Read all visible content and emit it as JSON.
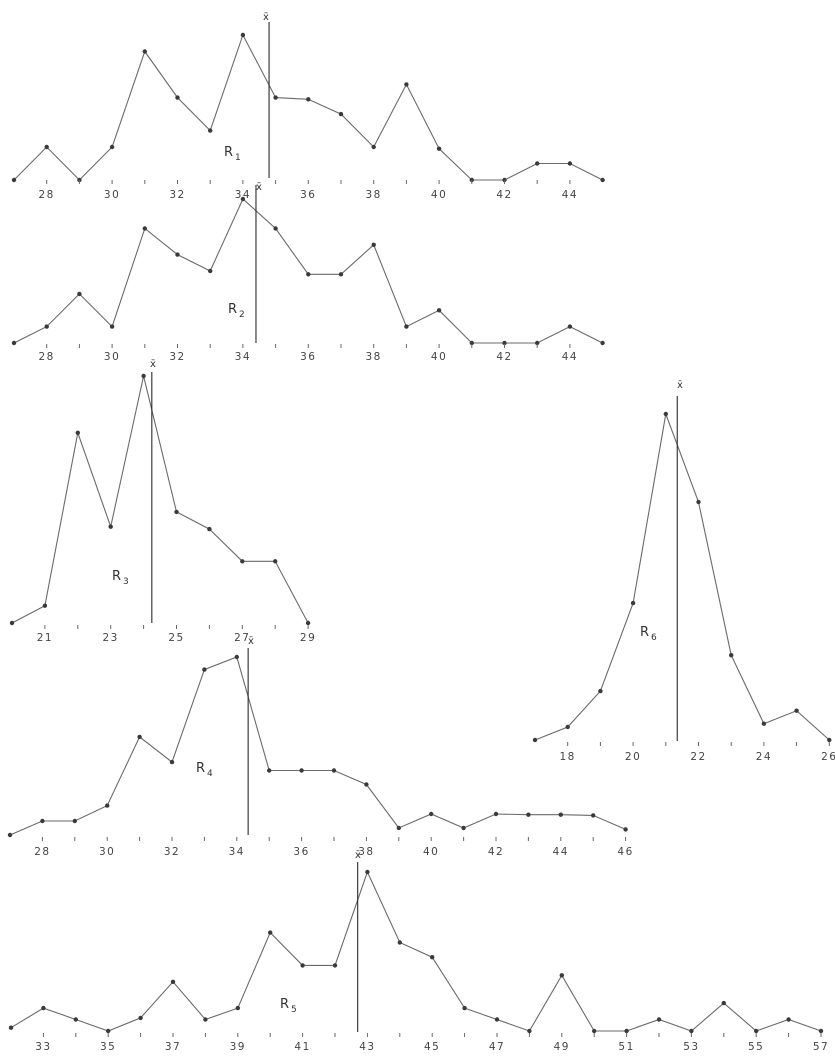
{
  "chart_data": [
    {
      "type": "line",
      "panel": "R1",
      "label_main": "R",
      "label_sub": "1",
      "mean_label": "x̄",
      "mean": 34.8,
      "x": [
        27,
        28,
        29,
        30,
        31,
        32,
        33,
        34,
        35,
        36,
        37,
        38,
        39,
        40,
        41,
        42,
        43,
        44,
        45
      ],
      "y": [
        0,
        10,
        0,
        10,
        39,
        25,
        15,
        44,
        25,
        24.5,
        20,
        10,
        29,
        9.5,
        0,
        0,
        5,
        5,
        0
      ],
      "tick_values": [
        28,
        29,
        30,
        31,
        32,
        33,
        34,
        35,
        36,
        37,
        38,
        39,
        40,
        41,
        42,
        43,
        44
      ],
      "tick_labels": [
        "28",
        "30",
        "32",
        "34",
        "36",
        "38",
        "40",
        "42",
        "44"
      ],
      "ylim": [
        0,
        44
      ]
    },
    {
      "type": "line",
      "panel": "R2",
      "label_main": "R",
      "label_sub": "2",
      "mean_label": "x̄",
      "mean": 34.4,
      "x": [
        27,
        28,
        29,
        30,
        31,
        32,
        33,
        34,
        35,
        36,
        37,
        38,
        39,
        40,
        41,
        42,
        43,
        44,
        45
      ],
      "y": [
        0,
        5,
        15,
        5,
        35,
        27,
        22,
        44,
        35,
        21,
        21,
        30,
        5,
        10,
        0,
        0,
        0,
        5,
        0
      ],
      "tick_values": [
        28,
        29,
        30,
        31,
        32,
        33,
        34,
        35,
        36,
        37,
        38,
        39,
        40,
        41,
        42,
        43,
        44
      ],
      "tick_labels": [
        "28",
        "30",
        "32",
        "34",
        "36",
        "38",
        "40",
        "42",
        "44"
      ],
      "ylim": [
        0,
        44
      ]
    },
    {
      "type": "line",
      "panel": "R3",
      "label_main": "R",
      "label_sub": "3",
      "mean_label": "x̄",
      "mean": 24.25,
      "x": [
        20,
        21,
        22,
        23,
        24,
        25,
        26,
        27,
        28,
        29
      ],
      "y": [
        0,
        7,
        77,
        39,
        100,
        45,
        38,
        25,
        25,
        0
      ],
      "tick_values": [
        21,
        22,
        23,
        24,
        25,
        26,
        27,
        28,
        29
      ],
      "tick_labels": [
        "21",
        "23",
        "25",
        "27",
        "29"
      ],
      "ylim": [
        0,
        100
      ]
    },
    {
      "type": "line",
      "panel": "R4",
      "label_main": "R",
      "label_sub": "4",
      "mean_label": "x̄",
      "mean": 34.35,
      "x": [
        27,
        28,
        29,
        30,
        31,
        32,
        33,
        34,
        35,
        36,
        37,
        38,
        39,
        40,
        41,
        42,
        43,
        44,
        45,
        46
      ],
      "y": [
        0,
        10,
        10,
        21,
        70,
        52,
        118,
        127,
        46,
        46,
        46,
        36,
        5,
        15,
        5,
        15,
        14.5,
        14.5,
        14,
        4
      ],
      "tick_values": [
        28,
        29,
        30,
        31,
        32,
        33,
        34,
        35,
        36,
        37,
        38,
        39,
        40,
        41,
        42,
        43,
        44,
        45,
        46
      ],
      "tick_labels": [
        "28",
        "30",
        "32",
        "34",
        "36",
        "38",
        "40",
        "42",
        "44",
        "46"
      ],
      "ylim": [
        0,
        127
      ]
    },
    {
      "type": "line",
      "panel": "R5",
      "label_main": "R",
      "label_sub": "5",
      "mean_label": "x̄",
      "mean": 42.7,
      "x": [
        32,
        33,
        34,
        35,
        36,
        37,
        38,
        39,
        40,
        41,
        42,
        43,
        44,
        45,
        46,
        47,
        48,
        49,
        50,
        51,
        52,
        53,
        54,
        55,
        56,
        57
      ],
      "y": [
        0,
        12,
        5,
        -2,
        6,
        28,
        5,
        12,
        58,
        38,
        38,
        95,
        52,
        43,
        12,
        5,
        -2,
        32,
        -2,
        -2,
        5,
        -2,
        15,
        -2,
        5,
        -2
      ],
      "tick_values": [
        33,
        34,
        35,
        36,
        37,
        38,
        39,
        40,
        41,
        42,
        43,
        44,
        45,
        46,
        47,
        48,
        49,
        50,
        51,
        52,
        53,
        54,
        55,
        56,
        57
      ],
      "tick_labels": [
        "33",
        "35",
        "37",
        "39",
        "41",
        "43",
        "45",
        "47",
        "49",
        "51",
        "53",
        "55",
        "57"
      ],
      "ylim": [
        -2,
        95
      ]
    },
    {
      "type": "line",
      "panel": "R6",
      "label_main": "R",
      "label_sub": "6",
      "mean_label": "x̄",
      "mean": 21.35,
      "x": [
        17,
        18,
        19,
        20,
        21,
        22,
        23,
        24,
        25,
        26
      ],
      "y": [
        0,
        4,
        15,
        42,
        100,
        73,
        26,
        5,
        9,
        0
      ],
      "tick_values": [
        18,
        19,
        20,
        21,
        22,
        23,
        24,
        25,
        26
      ],
      "tick_labels": [
        "18",
        "20",
        "22",
        "24",
        "26"
      ],
      "ylim": [
        0,
        100
      ]
    }
  ]
}
